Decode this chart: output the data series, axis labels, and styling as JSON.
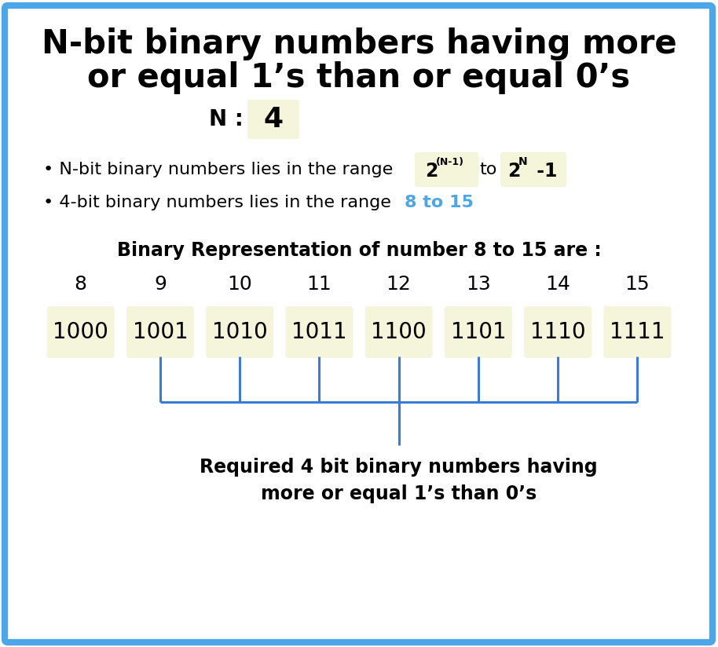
{
  "title_line1": "N-bit binary numbers having more",
  "title_line2": "or equal 1’s than or equal 0’s",
  "n_label": "N :",
  "n_value": "4",
  "bullet1_prefix": "• N-bit binary numbers lies in the range",
  "bullet2_prefix": "• 4-bit binary numbers lies in the range",
  "bullet2_highlight": "8 to 15",
  "binary_title": "Binary Representation of number 8 to 15 are :",
  "numbers": [
    "8",
    "9",
    "10",
    "11",
    "12",
    "13",
    "14",
    "15"
  ],
  "binary": [
    "1000",
    "1001",
    "1010",
    "1011",
    "1100",
    "1101",
    "1110",
    "1111"
  ],
  "result_line1": "Required 4 bit binary numbers having",
  "result_line2": "more or equal 1’s than 0’s",
  "bg_color": "#ffffff",
  "border_color": "#4da6e8",
  "title_color": "#000000",
  "box_bg": "#f5f5dc",
  "bullet_color": "#000000",
  "highlight_color": "#4da6e8",
  "bracket_color": "#3a7bd5",
  "binary_title_color": "#000000",
  "result_color": "#000000",
  "title_fontsize": 30,
  "body_fontsize": 16,
  "num_fontsize": 18,
  "binary_fontsize": 20
}
